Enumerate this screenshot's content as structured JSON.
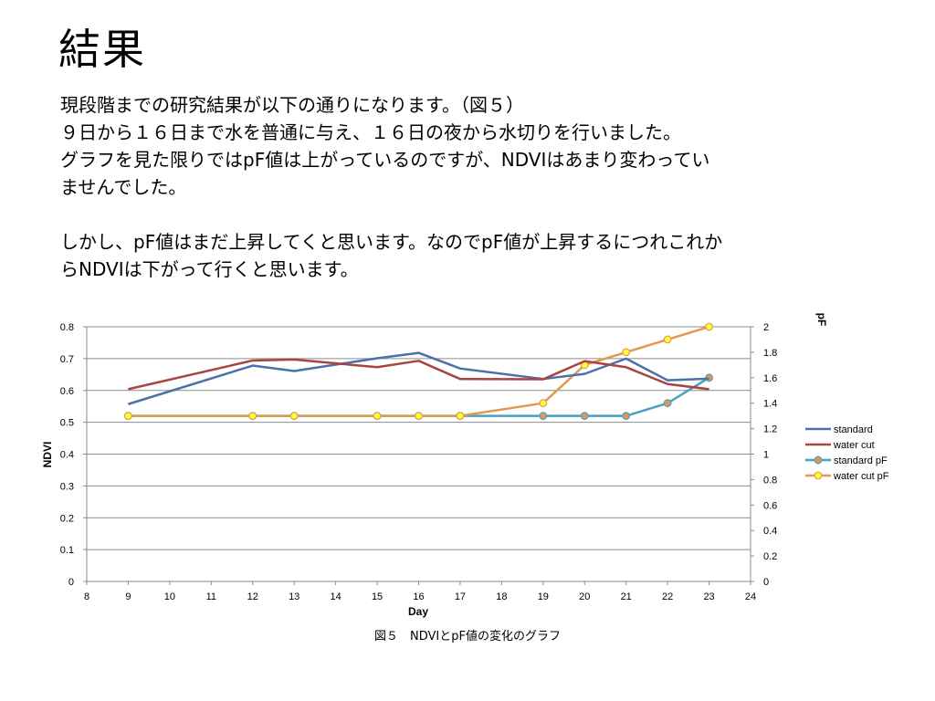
{
  "slide": {
    "title": "結果",
    "paragraphs": [
      "現段階までの研究結果が以下の通りになります。（図５）",
      "９日から１６日まで水を普通に与え、１６日の夜から水切りを行いました。",
      "グラフを見た限りではpF値は上がっているのですが、NDVIはあまり変わってい",
      "ませんでした。",
      "",
      "しかし、pF値はまだ上昇してくと思います。なのでpF値が上昇するにつれこれか",
      "らNDVIは下がって行くと思います。"
    ],
    "caption": "図５　NDVIとpF値の変化のグラフ"
  },
  "chart_data": {
    "type": "line",
    "title": "",
    "xlabel": "Day",
    "ylabel": "NDVI",
    "y2label": "pF",
    "xlim": [
      8,
      24
    ],
    "ylim": [
      0,
      0.8
    ],
    "y2lim": [
      0,
      2
    ],
    "x_ticks": [
      "8",
      "9",
      "10",
      "11",
      "12",
      "13",
      "14",
      "15",
      "16",
      "17",
      "18",
      "19",
      "20",
      "21",
      "22",
      "23",
      "24"
    ],
    "y_ticks": [
      "0",
      "0.1",
      "0.2",
      "0.3",
      "0.4",
      "0.5",
      "0.6",
      "0.7",
      "0.8"
    ],
    "y2_ticks": [
      "0",
      "0.2",
      "0.4",
      "0.6",
      "0.8",
      "1",
      "1.2",
      "1.4",
      "1.6",
      "1.8",
      "2"
    ],
    "grid": true,
    "legend_position": "right",
    "series": [
      {
        "name": "standard",
        "axis": "left",
        "color": "#4a72aa",
        "marker": false,
        "x": [
          9,
          12,
          13,
          15,
          16,
          17,
          19,
          20,
          21,
          22,
          23
        ],
        "values": [
          0.557,
          0.678,
          0.661,
          0.701,
          0.718,
          0.669,
          0.636,
          0.652,
          0.7,
          0.632,
          0.637
        ]
      },
      {
        "name": "water cut",
        "axis": "left",
        "color": "#aa4441",
        "marker": false,
        "x": [
          9,
          12,
          13,
          15,
          16,
          17,
          19,
          20,
          21,
          22,
          23
        ],
        "values": [
          0.604,
          0.694,
          0.697,
          0.673,
          0.693,
          0.636,
          0.635,
          0.692,
          0.673,
          0.62,
          0.604
        ]
      },
      {
        "name": "standard pF",
        "axis": "right",
        "color": "#4aa0c0",
        "marker": true,
        "marker_fill": "#e09a50",
        "x": [
          9,
          12,
          13,
          15,
          16,
          17,
          19,
          20,
          21,
          22,
          23
        ],
        "values": [
          1.3,
          1.3,
          1.3,
          1.3,
          1.3,
          1.3,
          1.3,
          1.3,
          1.3,
          1.4,
          1.6
        ]
      },
      {
        "name": "water cut pF",
        "axis": "right",
        "color": "#e09a50",
        "marker": true,
        "marker_fill": "#ffff33",
        "x": [
          9,
          12,
          13,
          15,
          16,
          17,
          19,
          20,
          21,
          22,
          23
        ],
        "values": [
          1.3,
          1.3,
          1.3,
          1.3,
          1.3,
          1.3,
          1.4,
          1.7,
          1.8,
          1.9,
          2.0
        ]
      }
    ]
  }
}
